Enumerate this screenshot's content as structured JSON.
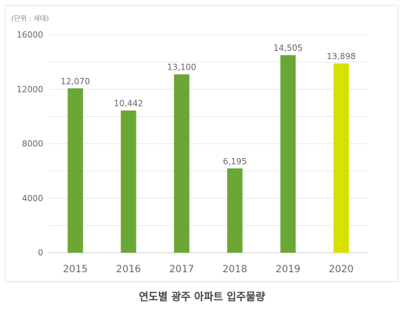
{
  "chart_data": {
    "type": "bar",
    "unit_note": "(단위 : 세대)",
    "categories": [
      "2015",
      "2016",
      "2017",
      "2018",
      "2019",
      "2020"
    ],
    "values": [
      12070,
      10442,
      13100,
      6195,
      14505,
      13898
    ],
    "data_labels": [
      "12,070",
      "10,442",
      "13,100",
      "6,195",
      "14,505",
      "13,898"
    ],
    "colors": [
      "#6aa736",
      "#6aa736",
      "#6aa736",
      "#6aa736",
      "#6aa736",
      "#d7e100"
    ],
    "yticks": [
      "0",
      "4000",
      "8000",
      "12000",
      "16000"
    ],
    "ytick_values": [
      0,
      4000,
      8000,
      12000,
      16000
    ],
    "ylim": [
      0,
      16000
    ],
    "grid": true,
    "legend": "none"
  },
  "caption": "연도별 광주 아파트 입주물량"
}
